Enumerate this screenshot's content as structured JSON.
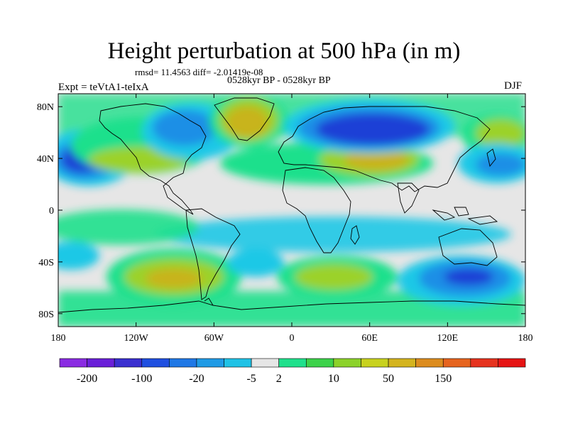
{
  "title": "Height perturbation at 500 hPa (in m)",
  "stats_line": "rmsd= 11.4563 diff= -2.01419e-08",
  "period_line": "0528kyr BP - 0528kyr BP",
  "experiment_label": "Expt = teVtA1-teIxA",
  "season_label": "DJF",
  "map": {
    "lon_range": [
      -180,
      180
    ],
    "lat_range": [
      -90,
      90
    ],
    "lon_tick_values": [
      -180,
      -120,
      -60,
      0,
      60,
      120,
      180
    ],
    "lon_tick_labels": [
      "180",
      "120W",
      "60W",
      "0",
      "60E",
      "120E",
      "180"
    ],
    "lat_tick_values": [
      80,
      40,
      0,
      -40,
      -80
    ],
    "lat_tick_labels": [
      "80N",
      "40N",
      "0",
      "40S",
      "80S"
    ]
  },
  "colorbar": {
    "colors": [
      "#8a2be2",
      "#6a1fd8",
      "#3a2fd0",
      "#1f4fe0",
      "#1f78e6",
      "#1f9be6",
      "#1fc2e6",
      "#e6e6e6",
      "#1fe08c",
      "#3cd24a",
      "#8cd22a",
      "#c8d21e",
      "#d4b41e",
      "#dc8c1e",
      "#e6641e",
      "#e6321e",
      "#e61414"
    ],
    "tick_labels": [
      "-200",
      "-100",
      "-20",
      "-5",
      "2",
      "10",
      "50",
      "150"
    ],
    "tick_index": [
      1,
      3,
      5,
      7,
      8,
      10,
      12,
      14
    ]
  },
  "colors": {
    "strong_negative": "#1f3fd6",
    "negative": "#1f8fe6",
    "weak_negative": "#1fc8e6",
    "near_zero": "#e6e6e6",
    "weak_positive": "#1fe08c",
    "positive": "#9bd22a",
    "strong_positive": "#c8b41e"
  }
}
